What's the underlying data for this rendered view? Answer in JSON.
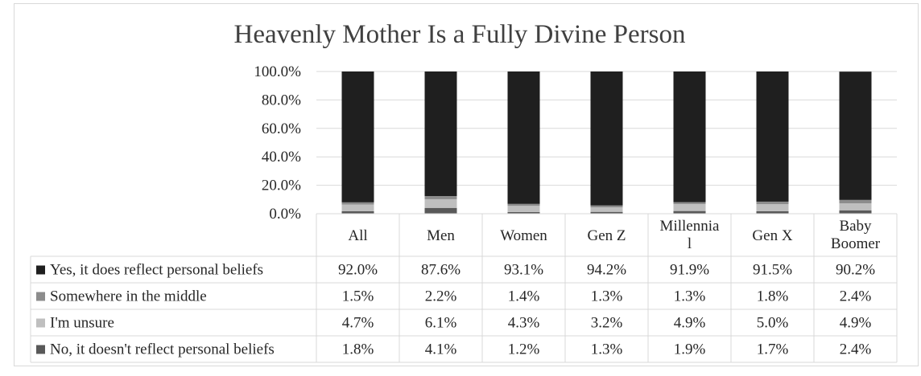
{
  "chart_data": {
    "type": "bar",
    "stacked": true,
    "title": "Heavenly Mother Is a Fully Divine Person",
    "categories": [
      "All",
      "Men",
      "Women",
      "Gen Z",
      "Millennia\nl",
      "Gen X",
      "Baby\nBoomer"
    ],
    "y_ticks": [
      "0.0%",
      "20.0%",
      "40.0%",
      "60.0%",
      "80.0%",
      "100.0%"
    ],
    "ylim": [
      0,
      100
    ],
    "grid": true,
    "legend": "data-table",
    "series": [
      {
        "name": "No, it doesn't reflect personal beliefs",
        "color": "#595959",
        "values": [
          1.8,
          4.1,
          1.2,
          1.3,
          1.9,
          1.7,
          2.4
        ],
        "labels": [
          "1.8%",
          "4.1%",
          "1.2%",
          "1.3%",
          "1.9%",
          "1.7%",
          "2.4%"
        ]
      },
      {
        "name": "I'm unsure",
        "color": "#bfbfbf",
        "values": [
          4.7,
          6.1,
          4.3,
          3.2,
          4.9,
          5.0,
          4.9
        ],
        "labels": [
          "4.7%",
          "6.1%",
          "4.3%",
          "3.2%",
          "4.9%",
          "5.0%",
          "4.9%"
        ]
      },
      {
        "name": "Somewhere in the middle",
        "color": "#8c8c8c",
        "values": [
          1.5,
          2.2,
          1.4,
          1.3,
          1.3,
          1.8,
          2.4
        ],
        "labels": [
          "1.5%",
          "2.2%",
          "1.4%",
          "1.3%",
          "1.3%",
          "1.8%",
          "2.4%"
        ]
      },
      {
        "name": "Yes, it does reflect personal beliefs",
        "color": "#1f1f1f",
        "values": [
          92.0,
          87.6,
          93.1,
          94.2,
          91.9,
          91.5,
          90.2
        ],
        "labels": [
          "92.0%",
          "87.6%",
          "93.1%",
          "94.2%",
          "91.9%",
          "91.5%",
          "90.2%"
        ]
      }
    ],
    "table_row_order": [
      3,
      2,
      1,
      0
    ]
  }
}
